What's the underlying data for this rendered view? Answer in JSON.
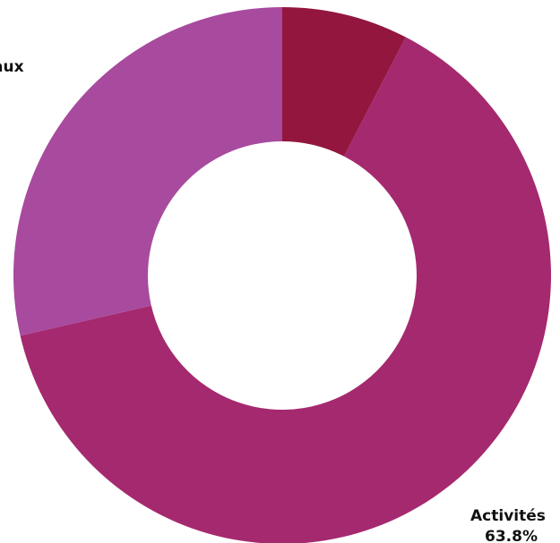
{
  "chart_data": {
    "type": "pie",
    "variant": "donut",
    "title": "",
    "slices": [
      {
        "label": "",
        "value": 7.6,
        "color": "#93163f",
        "shown_label": "",
        "shown_value": ""
      },
      {
        "label": "Activités",
        "value": 63.8,
        "color": "#a5296f",
        "shown_label": "Activités",
        "shown_value": "63.8%"
      },
      {
        "label": "…aux",
        "value": 28.6,
        "color": "#a84a9e",
        "shown_label": "aux",
        "shown_value": ""
      }
    ]
  }
}
